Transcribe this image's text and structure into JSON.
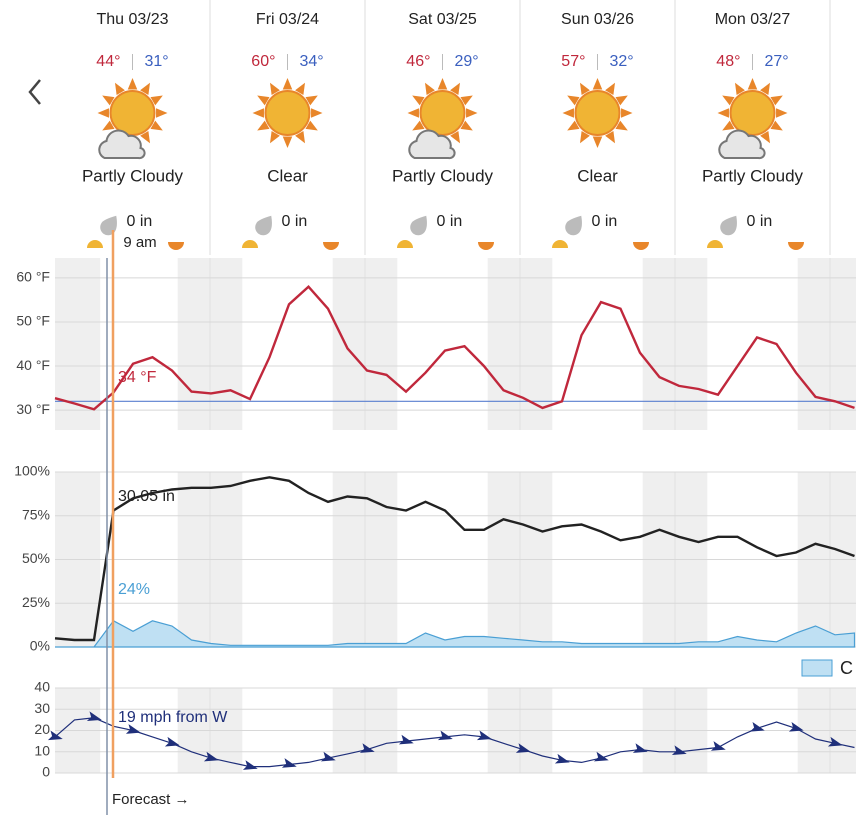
{
  "days": [
    {
      "date": "Thu 03/23",
      "high": "44°",
      "low": "31°",
      "condition": "Partly Cloudy",
      "precip": "0 in"
    },
    {
      "date": "Fri 03/24",
      "high": "60°",
      "low": "34°",
      "condition": "Clear",
      "precip": "0 in"
    },
    {
      "date": "Sat 03/25",
      "high": "46°",
      "low": "29°",
      "condition": "Partly Cloudy",
      "precip": "0 in"
    },
    {
      "date": "Sun 03/26",
      "high": "57°",
      "low": "32°",
      "condition": "Clear",
      "precip": "0 in"
    },
    {
      "date": "Mon 03/27",
      "high": "48°",
      "low": "27°",
      "condition": "Partly Cloudy",
      "precip": "0 in"
    }
  ],
  "cursor_label": "9 am",
  "forecast_label": "Forecast →",
  "chart_data": [
    {
      "type": "line",
      "ylim": [
        25.5,
        64.5
      ],
      "yticks": [
        {
          "value": 30,
          "label": "30 °F"
        },
        {
          "value": 40,
          "label": "40 °F"
        },
        {
          "value": 50,
          "label": "50 °F"
        },
        {
          "value": 60,
          "label": "60 °F"
        }
      ],
      "threshold": 32,
      "readout": "34 °F",
      "series": [
        {
          "color": "#c0283c",
          "values": [
            32.7,
            31.5,
            30.2,
            34,
            40.5,
            42,
            39,
            34.2,
            33.8,
            34.5,
            32.5,
            42,
            54,
            58,
            53,
            44,
            39,
            38,
            34.2,
            38.5,
            43.5,
            44.5,
            40,
            34.5,
            32.8,
            30.5,
            32,
            47,
            54.5,
            53,
            43,
            37.5,
            35.5,
            34.8,
            33.5,
            40,
            46.5,
            45,
            38.5,
            33,
            32,
            30.5
          ]
        }
      ]
    },
    {
      "type": "line",
      "ylim": [
        0,
        100
      ],
      "yticks": [
        {
          "value": 0,
          "label": "0%"
        },
        {
          "value": 25,
          "label": "25%"
        },
        {
          "value": 50,
          "label": "50%"
        },
        {
          "value": 75,
          "label": "75%"
        },
        {
          "value": 100,
          "label": "100%"
        }
      ],
      "readout": "30.05 in",
      "readout2": "24%",
      "series": [
        {
          "color": "#222222",
          "values": [
            5,
            4,
            4,
            78,
            85,
            88,
            90,
            91,
            91,
            92,
            95,
            97,
            95,
            88,
            83,
            86,
            85,
            80,
            78,
            83,
            78,
            67,
            67,
            73,
            70,
            66,
            69,
            70,
            66,
            61,
            63,
            67,
            63,
            60,
            63,
            63,
            57,
            52,
            54,
            59,
            56,
            52
          ]
        },
        {
          "name": "C",
          "color": "#4a9fd4",
          "fill": "#bfe0f3",
          "area": true,
          "values": [
            0,
            0,
            0,
            15,
            9,
            15,
            12,
            4,
            2,
            1,
            1,
            1,
            1,
            1,
            1,
            2,
            2,
            2,
            2,
            8,
            4,
            6,
            6,
            5,
            4,
            3,
            3,
            2,
            2,
            2,
            2,
            2,
            2,
            3,
            3,
            6,
            4,
            3,
            8,
            12,
            7,
            8
          ]
        }
      ]
    },
    {
      "type": "line",
      "ylim": [
        0,
        40
      ],
      "yticks": [
        0,
        10,
        20,
        30,
        40
      ],
      "readout": "19 mph from W",
      "series": [
        {
          "color": "#1f2f7a",
          "values": [
            17,
            25,
            26,
            22,
            20,
            17,
            14,
            10,
            7,
            5,
            3,
            3,
            4,
            5,
            7,
            9,
            11,
            14,
            15,
            16,
            17,
            18,
            17,
            14,
            11,
            8,
            6,
            5,
            7,
            10,
            11,
            10,
            10,
            11,
            12,
            17,
            21,
            24,
            21,
            16,
            14,
            12
          ]
        }
      ]
    }
  ]
}
